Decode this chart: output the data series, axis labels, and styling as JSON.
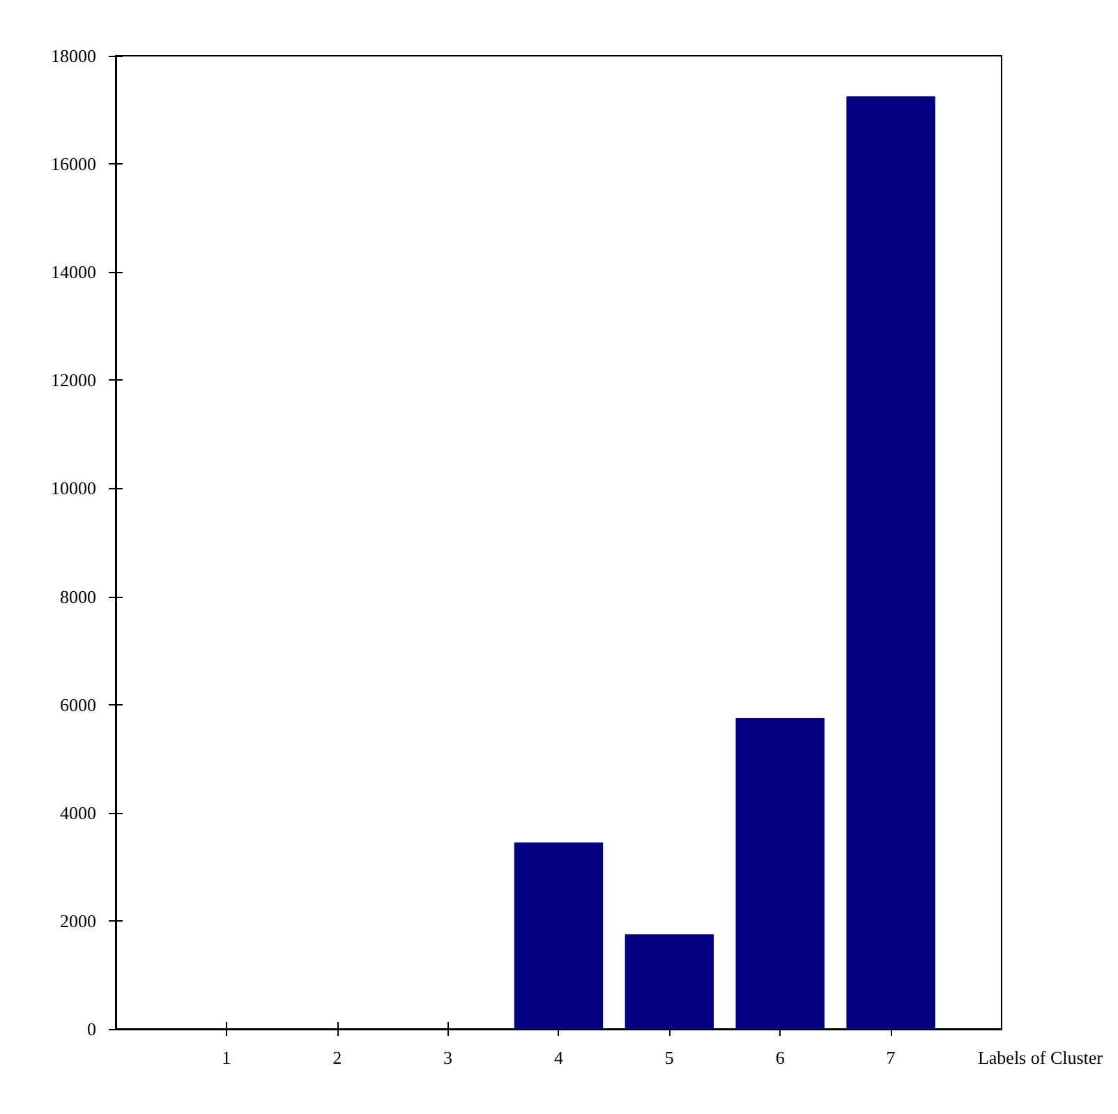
{
  "chart_data": {
    "type": "bar",
    "x": [
      1,
      2,
      3,
      4,
      5,
      6,
      7
    ],
    "values": [
      0,
      0,
      0,
      3450,
      1750,
      5750,
      17250
    ],
    "color": "#000080",
    "xlabel": "Labels of Cluster",
    "xlim": [
      0,
      8
    ],
    "xticks": [
      1,
      2,
      3,
      4,
      5,
      6,
      7
    ],
    "ylim": [
      0,
      18000
    ],
    "yticks": [
      0,
      2000,
      4000,
      6000,
      8000,
      10000,
      12000,
      14000,
      16000,
      18000
    ],
    "grid": false
  }
}
